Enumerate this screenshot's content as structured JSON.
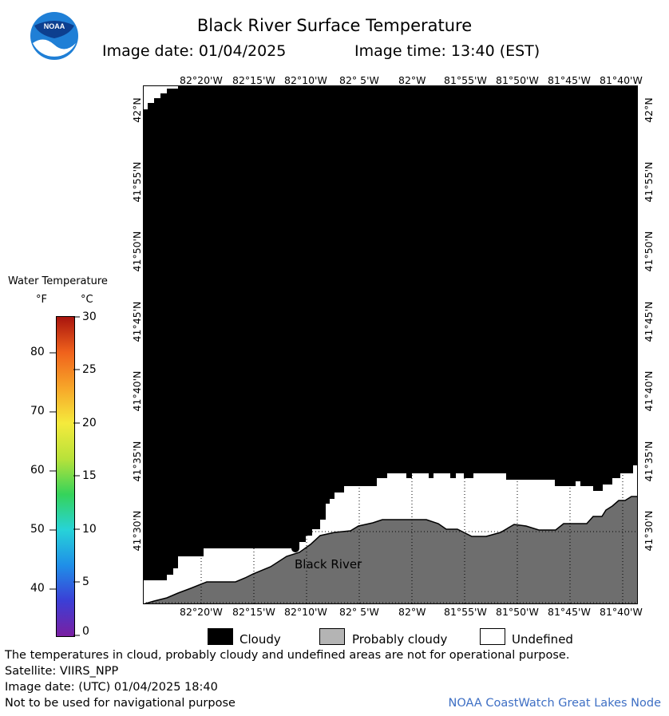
{
  "header": {
    "title": "Black River Surface Temperature",
    "image_date_label": "Image date: 01/04/2025",
    "image_time_label": "Image time: 13:40 (EST)",
    "logo_text": "NOAA"
  },
  "map": {
    "lon_ticks": [
      "82°20'W",
      "82°15'W",
      "82°10'W",
      "82° 5'W",
      "82°W",
      "81°55'W",
      "81°50'W",
      "81°45'W",
      "81°40'W"
    ],
    "lat_ticks": [
      "42°N",
      "41°55'N",
      "41°50'N",
      "41°45'N",
      "41°40'N",
      "41°35'N",
      "41°30'N"
    ],
    "place_label": "Black River",
    "colors": {
      "cloudy": "#000000",
      "probably_cloudy": "#6e6e6e",
      "undefined": "#ffffff"
    }
  },
  "colorbar": {
    "title": "Water Temperature",
    "unit_f": "°F",
    "unit_c": "°C",
    "f_ticks": [
      "80",
      "70",
      "60",
      "50",
      "40"
    ],
    "c_ticks": [
      "30",
      "25",
      "20",
      "15",
      "10",
      "5",
      "0"
    ],
    "gradient_colors": [
      "#7a1fa2",
      "#3b3fd6",
      "#1f8fe8",
      "#27d3d8",
      "#35d35a",
      "#b8e23a",
      "#f5ea3c",
      "#f7a629",
      "#f0621c",
      "#a8140e"
    ]
  },
  "legend": {
    "cloudy": "Cloudy",
    "probably_cloudy": "Probably cloudy",
    "undefined": "Undefined"
  },
  "footer": {
    "line1": "The temperatures in cloud, probably cloudy and undefined areas are not for operational purpose.",
    "line2": "Satellite: VIIRS_NPP",
    "line3": "Image date: (UTC) 01/04/2025  18:40",
    "line4": "Not to be used for navigational purpose",
    "credit": "NOAA CoastWatch Great Lakes Node"
  }
}
